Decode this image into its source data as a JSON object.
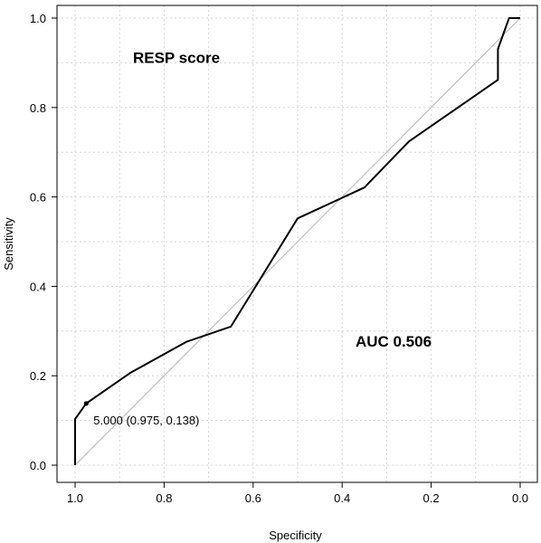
{
  "chart_data": {
    "type": "line",
    "title": "",
    "xlabel": "Specificity",
    "ylabel": "Sensitivity",
    "xlim": [
      1.0,
      0.0
    ],
    "ylim": [
      0.0,
      1.0
    ],
    "x_reversed": true,
    "grid": true,
    "xticks": [
      "1.0",
      "0.8",
      "0.6",
      "0.4",
      "0.2",
      "0.0"
    ],
    "yticks": [
      "0.0",
      "0.2",
      "0.4",
      "0.6",
      "0.8",
      "1.0"
    ],
    "reference_line": {
      "from": [
        1.0,
        0.0
      ],
      "to": [
        0.0,
        1.0
      ],
      "color": "#bfbfbf"
    },
    "series": [
      {
        "color": "#000000",
        "x": [
          1.0,
          1.0,
          0.975,
          0.875,
          0.75,
          0.65,
          0.5,
          0.35,
          0.25,
          0.05,
          0.05,
          0.025,
          0.0
        ],
        "y": [
          0.0,
          0.103,
          0.138,
          0.207,
          0.276,
          0.31,
          0.552,
          0.621,
          0.724,
          0.862,
          0.931,
          1.0,
          1.0
        ]
      }
    ],
    "highlight_point": {
      "x": 0.975,
      "y": 0.138,
      "label": "5.000 (0.975, 0.138)"
    },
    "annotations": [
      {
        "text": "RESP score",
        "x": 0.87,
        "y": 0.9
      },
      {
        "text": "AUC 0.506",
        "x": 0.37,
        "y": 0.265
      }
    ]
  }
}
